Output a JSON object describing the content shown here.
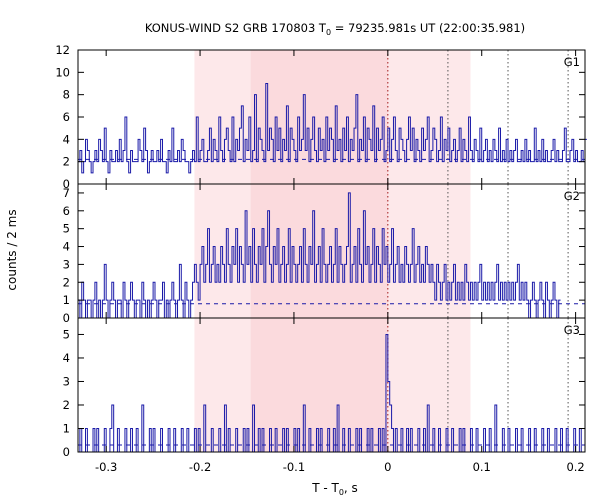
{
  "chart_data": {
    "type": "line",
    "title_prefix": "KONUS-WIND S2 GRB 170803 T",
    "title_sub": "0",
    "title_suffix": " = 79235.981s UT (22:00:35.981)",
    "xlabel_prefix": "T - T",
    "xlabel_sub": "0",
    "xlabel_suffix": ", s",
    "ylabel": "counts / 2 ms",
    "xlim": [
      -0.33,
      0.21
    ],
    "x_ticks": [
      -0.3,
      -0.2,
      -0.1,
      0,
      0.1,
      0.2
    ],
    "x_tick_labels": [
      "-0.3",
      "-0.2",
      "-0.1",
      "0",
      "0.1",
      "0.2"
    ],
    "bin_width": 0.002,
    "x_start": -0.33,
    "shaded_regions": [
      {
        "range": [
          -0.206,
          0.088
        ],
        "color": "#fde8ea"
      },
      {
        "range": [
          -0.146,
          0.0
        ],
        "color": "#fbdadd"
      }
    ],
    "vertical_markers": [
      {
        "x": 0.0,
        "color": "#a01818"
      },
      {
        "x": 0.064,
        "color": "#555555"
      },
      {
        "x": 0.128,
        "color": "#555555"
      },
      {
        "x": 0.192,
        "color": "#555555"
      }
    ],
    "line_color": "#1a1aa8",
    "panels": [
      {
        "name": "G1",
        "ylim": [
          0,
          12
        ],
        "y_ticks": [
          0,
          2,
          4,
          6,
          8,
          10,
          12
        ],
        "y_tick_labels": [
          "0",
          "2",
          "4",
          "6",
          "8",
          "10",
          "12"
        ],
        "background_level": 2.2,
        "counts": [
          2,
          3,
          1,
          2,
          4,
          3,
          2,
          1,
          2,
          3,
          2,
          4,
          3,
          2,
          5,
          2,
          1,
          3,
          2,
          2,
          3,
          2,
          4,
          2,
          3,
          6,
          2,
          1,
          3,
          2,
          2,
          2,
          4,
          3,
          2,
          5,
          3,
          1,
          2,
          3,
          2,
          2,
          3,
          2,
          4,
          2,
          2,
          1,
          3,
          2,
          5,
          2,
          2,
          3,
          2,
          4,
          3,
          2,
          2,
          1,
          2,
          3,
          2,
          6,
          2,
          3,
          4,
          2,
          2,
          3,
          5,
          2,
          4,
          3,
          2,
          6,
          3,
          2,
          4,
          5,
          3,
          2,
          6,
          2,
          4,
          3,
          5,
          7,
          2,
          4,
          3,
          6,
          2,
          3,
          8,
          2,
          5,
          4,
          3,
          2,
          9,
          3,
          5,
          4,
          2,
          6,
          3,
          5,
          2,
          4,
          3,
          7,
          2,
          5,
          4,
          3,
          2,
          6,
          3,
          4,
          8,
          3,
          5,
          2,
          4,
          6,
          3,
          2,
          5,
          3,
          4,
          2,
          6,
          3,
          5,
          4,
          2,
          7,
          3,
          4,
          2,
          5,
          3,
          6,
          2,
          4,
          3,
          5,
          8,
          2,
          4,
          3,
          6,
          2,
          5,
          4,
          3,
          7,
          2,
          5,
          3,
          4,
          6,
          2,
          3,
          5,
          2,
          4,
          6,
          3,
          2,
          5,
          4,
          3,
          2,
          4,
          6,
          3,
          5,
          2,
          4,
          3,
          2,
          5,
          3,
          4,
          6,
          2,
          3,
          5,
          4,
          2,
          3,
          6,
          2,
          4,
          3,
          5,
          2,
          3,
          4,
          2,
          3,
          5,
          2,
          4,
          3,
          2,
          6,
          3,
          2,
          4,
          3,
          2,
          5,
          2,
          3,
          4,
          2,
          3,
          2,
          4,
          3,
          2,
          5,
          2,
          3,
          2,
          4,
          2,
          3,
          2,
          3,
          4,
          2,
          2,
          3,
          2,
          4,
          2,
          3,
          2,
          2,
          5,
          2,
          3,
          2,
          4,
          2,
          3,
          2,
          2,
          3,
          4,
          2,
          3,
          2,
          2,
          3,
          5,
          2,
          2,
          3,
          4,
          2,
          3,
          2,
          2,
          3,
          2,
          4
        ]
      },
      {
        "name": "G2",
        "ylim": [
          0,
          7.5
        ],
        "y_ticks": [
          0,
          1,
          2,
          3,
          4,
          5,
          6,
          7
        ],
        "y_tick_labels": [
          "0",
          "1",
          "2",
          "3",
          "4",
          "5",
          "6",
          "7"
        ],
        "background_level": 0.8,
        "counts": [
          1,
          0,
          2,
          1,
          0,
          1,
          1,
          0,
          1,
          2,
          0,
          1,
          0,
          1,
          3,
          1,
          0,
          1,
          2,
          1,
          0,
          1,
          1,
          0,
          2,
          1,
          0,
          1,
          2,
          1,
          0,
          1,
          1,
          0,
          2,
          1,
          0,
          1,
          0,
          1,
          2,
          1,
          0,
          1,
          1,
          2,
          0,
          1,
          0,
          1,
          2,
          1,
          0,
          1,
          3,
          1,
          0,
          2,
          1,
          0,
          1,
          2,
          3,
          2,
          1,
          3,
          4,
          2,
          3,
          5,
          2,
          3,
          4,
          2,
          3,
          2,
          4,
          3,
          2,
          5,
          3,
          2,
          4,
          3,
          5,
          2,
          4,
          3,
          2,
          6,
          3,
          4,
          2,
          5,
          3,
          2,
          4,
          3,
          5,
          2,
          4,
          6,
          3,
          2,
          4,
          3,
          5,
          2,
          3,
          4,
          2,
          3,
          5,
          2,
          4,
          3,
          2,
          3,
          4,
          2,
          5,
          3,
          2,
          4,
          3,
          6,
          2,
          3,
          4,
          2,
          5,
          3,
          2,
          3,
          4,
          2,
          3,
          5,
          2,
          4,
          3,
          2,
          3,
          4,
          7,
          2,
          3,
          4,
          2,
          5,
          3,
          2,
          6,
          3,
          4,
          2,
          3,
          5,
          2,
          4,
          3,
          2,
          5,
          3,
          4,
          2,
          3,
          5,
          2,
          3,
          4,
          2,
          3,
          2,
          4,
          3,
          2,
          3,
          5,
          2,
          3,
          4,
          2,
          3,
          2,
          4,
          3,
          2,
          3,
          2,
          1,
          3,
          2,
          1,
          2,
          3,
          1,
          2,
          1,
          2,
          3,
          1,
          2,
          1,
          2,
          1,
          3,
          2,
          1,
          2,
          1,
          2,
          1,
          2,
          3,
          1,
          2,
          1,
          2,
          1,
          2,
          1,
          2,
          3,
          1,
          2,
          1,
          2,
          1,
          2,
          1,
          2,
          1,
          2,
          3,
          1,
          2,
          1,
          2,
          1,
          0,
          1,
          2,
          1,
          0,
          1,
          2,
          1,
          0,
          2,
          1,
          0,
          1,
          2,
          1,
          0,
          1
        ]
      },
      {
        "name": "G3",
        "ylim": [
          0,
          5.7
        ],
        "y_ticks": [
          0,
          1,
          2,
          3,
          4,
          5
        ],
        "y_tick_labels": [
          "0",
          "1",
          "2",
          "3",
          "4",
          "5"
        ],
        "background_level": 0.3,
        "counts": [
          0,
          1,
          0,
          0,
          1,
          0,
          0,
          0,
          1,
          0,
          1,
          0,
          0,
          0,
          1,
          0,
          0,
          1,
          2,
          0,
          0,
          1,
          0,
          0,
          0,
          1,
          0,
          0,
          1,
          0,
          0,
          1,
          0,
          0,
          2,
          0,
          0,
          0,
          1,
          0,
          1,
          0,
          0,
          0,
          1,
          0,
          0,
          0,
          1,
          0,
          0,
          1,
          0,
          0,
          0,
          1,
          0,
          0,
          1,
          0,
          0,
          0,
          1,
          0,
          1,
          0,
          0,
          2,
          0,
          0,
          0,
          1,
          0,
          0,
          0,
          1,
          0,
          0,
          2,
          0,
          1,
          0,
          0,
          0,
          1,
          0,
          0,
          0,
          1,
          0,
          1,
          0,
          0,
          2,
          0,
          0,
          1,
          0,
          1,
          0,
          0,
          0,
          1,
          0,
          0,
          1,
          0,
          0,
          0,
          1,
          0,
          1,
          0,
          0,
          0,
          1,
          0,
          1,
          0,
          0,
          2,
          0,
          0,
          1,
          0,
          0,
          0,
          1,
          0,
          1,
          0,
          0,
          0,
          1,
          0,
          0,
          1,
          0,
          2,
          0,
          0,
          1,
          0,
          0,
          1,
          0,
          0,
          0,
          1,
          0,
          1,
          0,
          0,
          0,
          1,
          0,
          1,
          0,
          0,
          0,
          1,
          0,
          1,
          0,
          5,
          3,
          2,
          1,
          0,
          1,
          0,
          0,
          1,
          0,
          0,
          1,
          0,
          1,
          0,
          0,
          0,
          1,
          0,
          0,
          1,
          0,
          2,
          0,
          0,
          1,
          0,
          0,
          1,
          0,
          0,
          0,
          1,
          0,
          0,
          1,
          0,
          0,
          0,
          1,
          0,
          1,
          0,
          0,
          0,
          1,
          0,
          0,
          1,
          0,
          0,
          0,
          1,
          0,
          0,
          1,
          0,
          0,
          2,
          0,
          0,
          0,
          1,
          0,
          0,
          1,
          0,
          0,
          0,
          1,
          0,
          0,
          1,
          0,
          0,
          0,
          1,
          0,
          0,
          1,
          0,
          0,
          0,
          1,
          0,
          0,
          1,
          0,
          0,
          0,
          1,
          0,
          0,
          1,
          0,
          0,
          1,
          0,
          0,
          0,
          1,
          0,
          0,
          1,
          0,
          0
        ]
      }
    ]
  }
}
